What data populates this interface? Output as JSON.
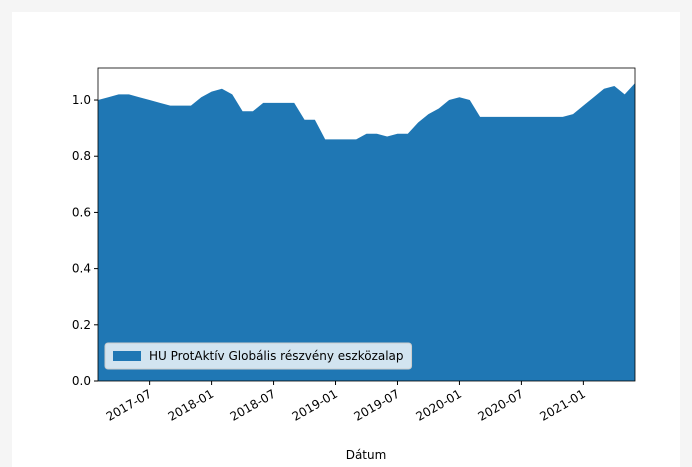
{
  "chart_data": {
    "type": "area",
    "xlabel": "Dátum",
    "x": [
      "2017-02",
      "2017-03",
      "2017-04",
      "2017-05",
      "2017-06",
      "2017-07",
      "2017-08",
      "2017-09",
      "2017-10",
      "2017-11",
      "2017-12",
      "2018-01",
      "2018-02",
      "2018-03",
      "2018-04",
      "2018-05",
      "2018-06",
      "2018-07",
      "2018-08",
      "2018-09",
      "2018-10",
      "2018-11",
      "2018-12",
      "2019-01",
      "2019-02",
      "2019-03",
      "2019-04",
      "2019-05",
      "2019-06",
      "2019-07",
      "2019-08",
      "2019-09",
      "2019-10",
      "2019-11",
      "2019-12",
      "2020-01",
      "2020-02",
      "2020-03",
      "2020-04",
      "2020-05",
      "2020-06",
      "2020-07",
      "2020-08",
      "2020-09",
      "2020-10",
      "2020-11",
      "2020-12",
      "2021-01",
      "2021-02",
      "2021-03",
      "2021-04",
      "2021-05",
      "2021-06"
    ],
    "series": [
      {
        "name": "HU ProtAktív Globális részvény eszközalap",
        "color": "#1f77b4",
        "values": [
          1.0,
          1.01,
          1.02,
          1.02,
          1.01,
          1.0,
          0.99,
          0.98,
          0.98,
          0.98,
          1.01,
          1.03,
          1.04,
          1.02,
          0.96,
          0.96,
          0.99,
          0.99,
          0.99,
          0.99,
          0.93,
          0.93,
          0.86,
          0.86,
          0.86,
          0.86,
          0.88,
          0.88,
          0.87,
          0.88,
          0.88,
          0.92,
          0.95,
          0.97,
          1.0,
          1.01,
          1.0,
          0.94,
          0.94,
          0.94,
          0.94,
          0.94,
          0.94,
          0.94,
          0.94,
          0.94,
          0.95,
          0.98,
          1.01,
          1.04,
          1.05,
          1.02,
          1.06
        ]
      }
    ],
    "xlim": [
      "2017-02",
      "2021-06"
    ],
    "xticks": [
      "2017-07",
      "2018-01",
      "2018-07",
      "2019-01",
      "2019-07",
      "2020-01",
      "2020-07",
      "2021-01"
    ],
    "ylim": [
      0,
      1.114
    ],
    "yticks": [
      {
        "value": 0,
        "label": "0.0"
      },
      0.2,
      0.4,
      0.6,
      0.8,
      {
        "value": 1,
        "label": "1.0"
      }
    ],
    "legend": "lower left"
  }
}
